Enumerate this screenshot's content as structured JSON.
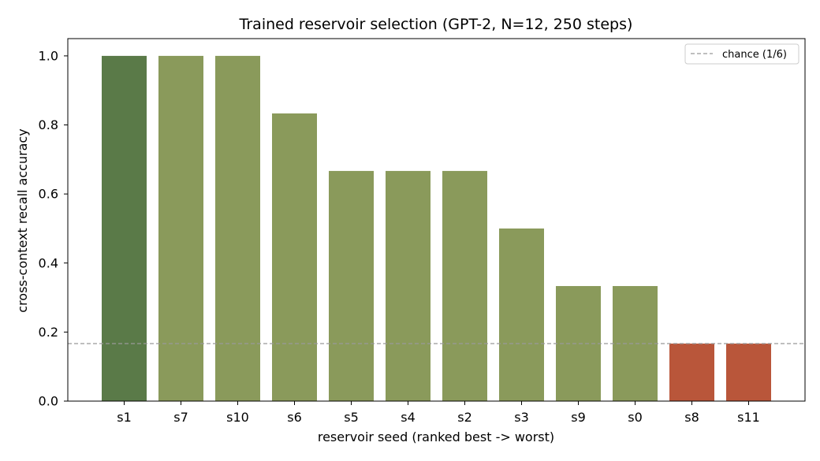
{
  "chart_data": {
    "type": "bar",
    "title": "Trained reservoir selection (GPT-2, N=12, 250 steps)",
    "xlabel": "reservoir seed (ranked best -> worst)",
    "ylabel": "cross-context recall accuracy",
    "categories": [
      "s1",
      "s7",
      "s10",
      "s6",
      "s5",
      "s4",
      "s2",
      "s3",
      "s9",
      "s0",
      "s8",
      "s11"
    ],
    "values": [
      1.0,
      1.0,
      1.0,
      0.8333,
      0.6667,
      0.6667,
      0.6667,
      0.5,
      0.3333,
      0.3333,
      0.1667,
      0.1667
    ],
    "bar_colors": [
      "#5a7a48",
      "#8a9a5b",
      "#8a9a5b",
      "#8a9a5b",
      "#8a9a5b",
      "#8a9a5b",
      "#8a9a5b",
      "#8a9a5b",
      "#8a9a5b",
      "#8a9a5b",
      "#b9563a",
      "#b9563a"
    ],
    "ylim": [
      0,
      1.05
    ],
    "yticks": [
      "0.0",
      "0.2",
      "0.4",
      "0.6",
      "0.8",
      "1.0"
    ],
    "ytick_values": [
      0,
      0.2,
      0.4,
      0.6,
      0.8,
      1.0
    ],
    "reference_line": {
      "label": "chance (1/6)",
      "value": 0.1667,
      "style": "dashed",
      "color": "#999999"
    },
    "legend": {
      "position": "top-right",
      "entries": [
        "chance (1/6)"
      ]
    },
    "grid": false
  }
}
